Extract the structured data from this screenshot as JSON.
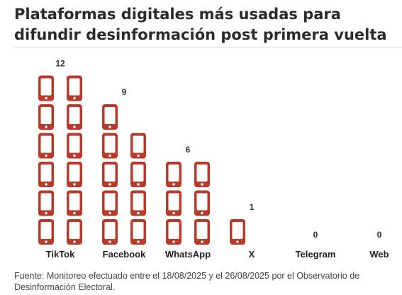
{
  "title": "Plataformas digitales más usadas para difundir desinformación post primera vuelta",
  "source": "Fuente: Monitoreo efectuado entre el 18/08/2025 y el 26/08/2025 por el Observatorio de Desinformación Electoral.",
  "colors": {
    "icon": "#b83a2a",
    "icon_screen": "#ffffff"
  },
  "chart_data": {
    "type": "bar",
    "style": "pictogram",
    "icon": "smartphone-icon",
    "units_per_icon": 1,
    "categories": [
      "TikTok",
      "Facebook",
      "WhatsApp",
      "X",
      "Telegram",
      "Web"
    ],
    "values": [
      12,
      9,
      6,
      1,
      0,
      0
    ],
    "value_labels": [
      "12",
      "9",
      "6",
      "1",
      "0",
      "0"
    ],
    "grid": false
  }
}
